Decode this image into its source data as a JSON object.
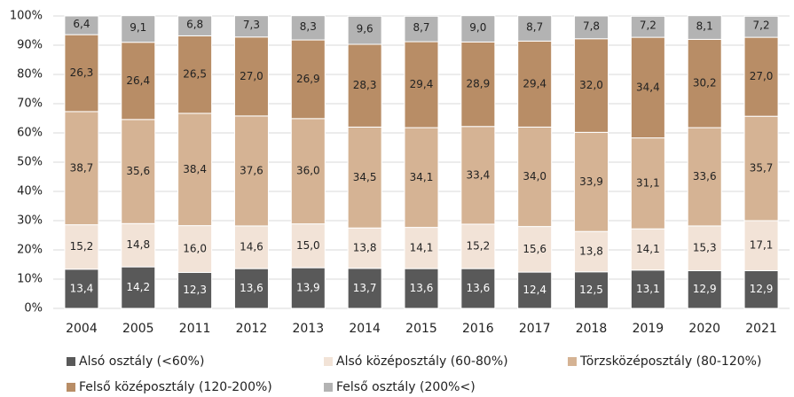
{
  "chart_data": {
    "type": "stacked_bar",
    "categories": [
      "2004",
      "2005",
      "2011",
      "2012",
      "2013",
      "2014",
      "2015",
      "2016",
      "2017",
      "2018",
      "2019",
      "2020",
      "2021"
    ],
    "series": [
      {
        "name": "Alsó osztály (<60%)",
        "color": "#595959",
        "values": [
          13.4,
          14.2,
          12.3,
          13.6,
          13.9,
          13.7,
          13.6,
          13.6,
          12.4,
          12.5,
          13.1,
          12.9,
          12.9
        ],
        "value_labels": [
          "13,4",
          "14,2",
          "12,3",
          "13,6",
          "13,9",
          "13,7",
          "13,6",
          "13,6",
          "12,4",
          "12,5",
          "13,1",
          "12,9",
          "12,9"
        ]
      },
      {
        "name": "Alsó középosztály (60-80%)",
        "color": "#f2e3d7",
        "values": [
          15.2,
          14.8,
          16.0,
          14.6,
          15.0,
          13.8,
          14.1,
          15.2,
          15.6,
          13.8,
          14.1,
          15.3,
          17.1
        ],
        "value_labels": [
          "15,2",
          "14,8",
          "16,0",
          "14,6",
          "15,0",
          "13,8",
          "14,1",
          "15,2",
          "15,6",
          "13,8",
          "14,1",
          "15,3",
          "17,1"
        ]
      },
      {
        "name": "Törzsközéposztály (80-120%)",
        "color": "#d5b394",
        "values": [
          38.7,
          35.6,
          38.4,
          37.6,
          36.0,
          34.5,
          34.1,
          33.4,
          34.0,
          33.9,
          31.1,
          33.6,
          35.7
        ],
        "value_labels": [
          "38,7",
          "35,6",
          "38,4",
          "37,6",
          "36,0",
          "34,5",
          "34,1",
          "33,4",
          "34,0",
          "33,9",
          "31,1",
          "33,6",
          "35,7"
        ]
      },
      {
        "name": "Felső középosztály (120-200%)",
        "color": "#b88d66",
        "values": [
          26.3,
          26.4,
          26.5,
          27.0,
          26.9,
          28.3,
          29.4,
          28.9,
          29.4,
          32.0,
          34.4,
          30.2,
          27.0
        ],
        "value_labels": [
          "26,3",
          "26,4",
          "26,5",
          "27,0",
          "26,9",
          "28,3",
          "29,4",
          "28,9",
          "29,4",
          "32,0",
          "34,4",
          "30,2",
          "27,0"
        ]
      },
      {
        "name": "Felső osztály (200%<)",
        "color": "#b3b3b3",
        "values": [
          6.4,
          9.1,
          6.8,
          7.3,
          8.3,
          9.6,
          8.7,
          9.0,
          8.7,
          7.8,
          7.2,
          8.1,
          7.2
        ],
        "value_labels": [
          "6,4",
          "9,1",
          "6,8",
          "7,3",
          "8,3",
          "9,6",
          "8,7",
          "9,0",
          "8,7",
          "7,8",
          "7,2",
          "8,1",
          "7,2"
        ]
      }
    ],
    "ylim": [
      0,
      100
    ],
    "yticks": [
      {
        "value": 0,
        "label": "0%"
      },
      {
        "value": 10,
        "label": "10%"
      },
      {
        "value": 20,
        "label": "20%"
      },
      {
        "value": 30,
        "label": "30%"
      },
      {
        "value": 40,
        "label": "40%"
      },
      {
        "value": 50,
        "label": "50%"
      },
      {
        "value": 60,
        "label": "60%"
      },
      {
        "value": 70,
        "label": "70%"
      },
      {
        "value": 80,
        "label": "80%"
      },
      {
        "value": 90,
        "label": "90%"
      },
      {
        "value": 100,
        "label": "100%"
      }
    ],
    "grid": true
  }
}
